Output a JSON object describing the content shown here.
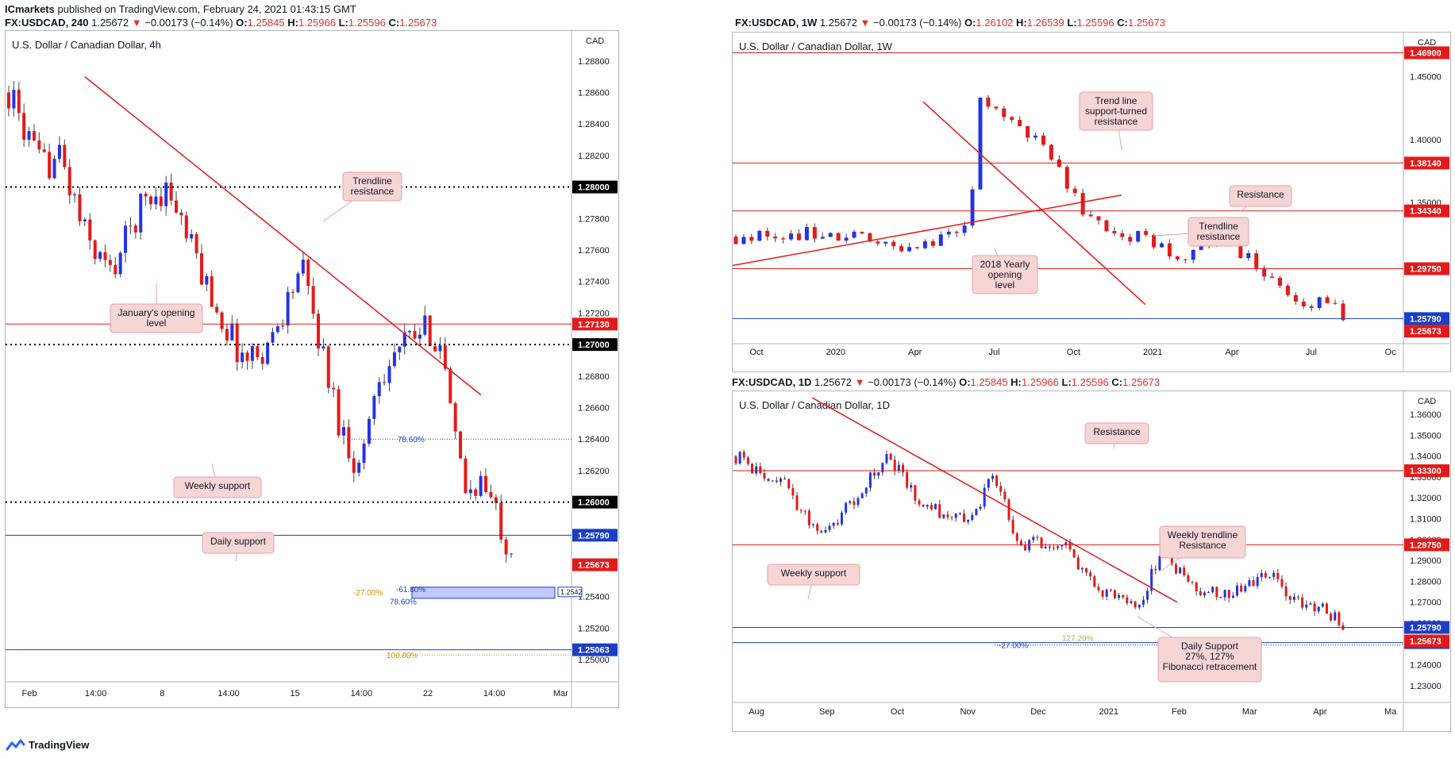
{
  "header": {
    "publisher": "ICmarkets",
    "published_text": "published on TradingView.com, February 24, 2021 01:43:15 GMT"
  },
  "branding": {
    "name": "TradingView"
  },
  "colors": {
    "bull": "#2433e6",
    "bear": "#e61919",
    "red_line": "#e31a1a",
    "blue_line": "#1a3fc4",
    "callout_bg": "#f6d5d5",
    "callout_border": "#e8a1a1"
  },
  "chart_data": [
    {
      "id": "h4",
      "type": "candlestick",
      "symbol": "FX:USDCAD",
      "interval": "240",
      "ohlc_line": {
        "last": "1.25672",
        "change": "−0.00173 (−0.14%)",
        "o": "1.25845",
        "h": "1.25966",
        "l": "1.25596",
        "c": "1.25673"
      },
      "title": "U.S. Dollar / Canadian Dollar, 4h",
      "currency": "CAD",
      "ylim": [
        1.249,
        1.2895
      ],
      "y_ticks": [
        "1.28800",
        "1.28600",
        "1.28400",
        "1.28200",
        "1.28000",
        "1.27800",
        "1.27600",
        "1.27400",
        "1.27200",
        "1.27000",
        "1.26800",
        "1.26600",
        "1.26400",
        "1.26200",
        "1.26000",
        "1.25800",
        "1.25600",
        "1.25400",
        "1.25200",
        "1.25000"
      ],
      "x_labels": [
        "Feb",
        "14:00",
        "8",
        "14:00",
        "15",
        "14:00",
        "22",
        "14:00",
        "Mar"
      ],
      "levels": [
        {
          "value": 1.28,
          "label": "1.28000",
          "style": "dotted",
          "color": "black"
        },
        {
          "value": 1.2713,
          "label": "1.27130",
          "style": "solid",
          "color": "red"
        },
        {
          "value": 1.27,
          "label": "1.27000",
          "style": "dotted",
          "color": "black"
        },
        {
          "value": 1.26,
          "label": "1.26000",
          "style": "dotted",
          "color": "black"
        },
        {
          "value": 1.2579,
          "label": "1.25790",
          "style": "solid",
          "color": "blue"
        },
        {
          "value": 1.25063,
          "label": "1.25063",
          "style": "solid",
          "color": "blue"
        }
      ],
      "last_price": {
        "value": 1.25673,
        "label": "1.25673"
      },
      "fib_labels": [
        {
          "label": "78.60%",
          "value": 1.264
        },
        {
          "label": "-27.00%",
          "value": 1.2543
        },
        {
          "label": "-61.80%",
          "value": 1.2543
        },
        {
          "label": "78.60%",
          "value": 1.2537
        },
        {
          "label": "100.00%",
          "value": 1.2503
        }
      ],
      "box_label": "1.2542",
      "annotations": [
        {
          "text": "Trendline\nresistance"
        },
        {
          "text": "January's opening\nlevel"
        },
        {
          "text": "Weekly support"
        },
        {
          "text": "Daily support"
        }
      ],
      "trendline": [
        [
          1.287,
          0.08
        ],
        [
          1.2668,
          0.85
        ]
      ]
    },
    {
      "id": "w1",
      "type": "candlestick",
      "symbol": "FX:USDCAD",
      "interval": "1W",
      "ohlc_line": {
        "last": "1.25672",
        "change": "−0.00173 (−0.14%)",
        "o": "1.26102",
        "h": "1.26539",
        "l": "1.25596",
        "c": "1.25673"
      },
      "title": "U.S. Dollar / Canadian Dollar, 1W",
      "currency": "CAD",
      "ylim": [
        1.243,
        1.48
      ],
      "y_ticks": [
        "1.45000",
        "1.40000",
        "1.35000",
        "1.30000",
        "1.25000"
      ],
      "x_labels": [
        "Oct",
        "2020",
        "Apr",
        "Jul",
        "Oct",
        "2021",
        "Apr",
        "Jul",
        "Oc"
      ],
      "levels": [
        {
          "value": 1.469,
          "label": "1.46900",
          "style": "solid",
          "color": "red"
        },
        {
          "value": 1.3814,
          "label": "1.38140",
          "style": "solid",
          "color": "red"
        },
        {
          "value": 1.3434,
          "label": "1.34340",
          "style": "solid",
          "color": "red"
        },
        {
          "value": 1.2975,
          "label": "1.29750",
          "style": "solid",
          "color": "red"
        },
        {
          "value": 1.2579,
          "label": "1.25790",
          "style": "solid",
          "color": "blue"
        }
      ],
      "last_price": {
        "value": 1.25673,
        "label": "1.25673"
      },
      "annotations": [
        {
          "text": "Trend line\nsupport-turned\nresistance"
        },
        {
          "text": "Resistance"
        },
        {
          "text": "Trendline\nresistance"
        },
        {
          "text": "2018 Yearly\nopening\nlevel"
        }
      ]
    },
    {
      "id": "d1",
      "type": "candlestick",
      "symbol": "FX:USDCAD",
      "interval": "1D",
      "ohlc_line": {
        "last": "1.25672",
        "change": "−0.00173 (−0.14%)",
        "o": "1.25845",
        "h": "1.25966",
        "l": "1.25596",
        "c": "1.25673"
      },
      "title": "U.S. Dollar / Canadian Dollar, 1D",
      "currency": "CAD",
      "ylim": [
        1.225,
        1.368
      ],
      "y_ticks": [
        "1.36000",
        "1.35000",
        "1.34000",
        "1.33000",
        "1.32000",
        "1.31000",
        "1.30000",
        "1.29000",
        "1.28000",
        "1.27000",
        "1.26000",
        "1.25000",
        "1.24000",
        "1.23000"
      ],
      "x_labels": [
        "Aug",
        "Sep",
        "Oct",
        "Nov",
        "Dec",
        "2021",
        "Feb",
        "Mar",
        "Apr",
        "Ma"
      ],
      "levels": [
        {
          "value": 1.333,
          "label": "1.33300",
          "style": "solid",
          "color": "red"
        },
        {
          "value": 1.2975,
          "label": "1.29750",
          "style": "solid",
          "color": "red"
        },
        {
          "value": 1.2579,
          "label": "1.25790",
          "style": "solid",
          "color": "blue"
        },
        {
          "value": 1.25063,
          "label": "1.25063",
          "style": "solid",
          "color": "blue"
        }
      ],
      "last_price": {
        "value": 1.25673,
        "label": "1.25673"
      },
      "fib_labels": [
        {
          "label": "127.20%",
          "value": 1.2515
        },
        {
          "label": "-27.00%",
          "value": 1.2495
        }
      ],
      "annotations": [
        {
          "text": "Resistance"
        },
        {
          "text": "Weekly trendline\nResistance"
        },
        {
          "text": "Weekly support"
        },
        {
          "text": "Daily Support\n27%, 127%\nFibonacci retracement"
        }
      ]
    }
  ]
}
